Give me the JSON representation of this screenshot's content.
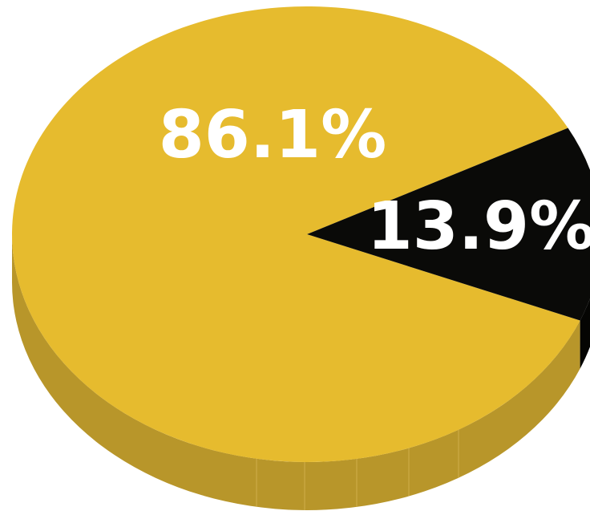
{
  "chart_data": {
    "type": "pie",
    "style": "3d",
    "slices": [
      {
        "label": "86.1%",
        "value": 86.1,
        "color": "#e6bb2e",
        "side_color": "#b8962a"
      },
      {
        "label": "13.9%",
        "value": 13.9,
        "color": "#0a0a08",
        "side_color": "#050503"
      }
    ],
    "title": "",
    "legend": "none"
  }
}
